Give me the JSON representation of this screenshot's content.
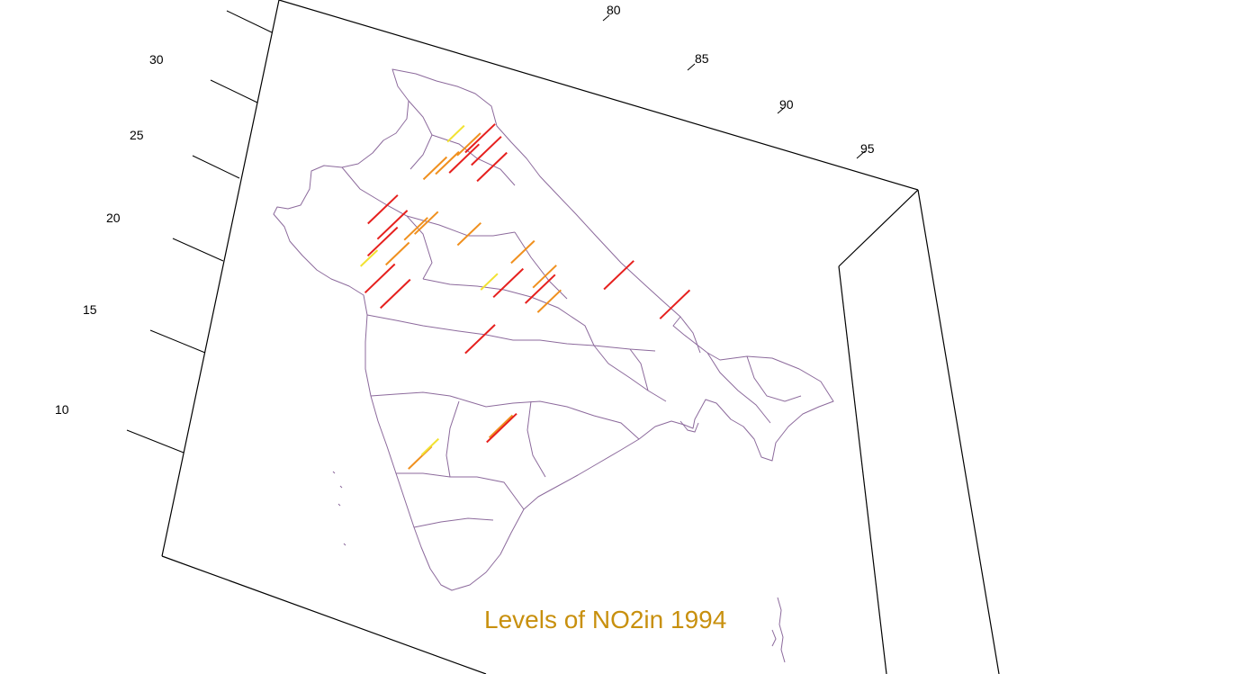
{
  "title": "Levels of NO2in 1994",
  "colors": {
    "title": "#c8900e",
    "boundary": "#8c6a9c",
    "frame": "#000000",
    "level_low": "#f2e232",
    "level_mid": "#f0901e",
    "level_high": "#e6201e"
  },
  "axes": {
    "longitude_ticks": [
      "80",
      "85",
      "90",
      "95"
    ],
    "latitude_ticks": [
      "30",
      "25",
      "20",
      "15",
      "10"
    ]
  },
  "chart_data": {
    "type": "map-3d-bars",
    "region": "India",
    "title": "Levels of NO2in 1994",
    "levels": [
      "low",
      "mid",
      "high"
    ],
    "level_colors": {
      "low": "#f2e232",
      "mid": "#f0901e",
      "high": "#e6201e"
    },
    "longitude_ticks": [
      80,
      85,
      90,
      95
    ],
    "latitude_ticks": [
      30,
      25,
      20,
      15,
      10
    ],
    "stations": [
      {
        "lon": 77.2,
        "lat": 28.6,
        "level": "high"
      },
      {
        "lon": 76.8,
        "lat": 28.3,
        "level": "mid"
      },
      {
        "lon": 76.2,
        "lat": 28.9,
        "level": "low"
      },
      {
        "lon": 77.6,
        "lat": 28.0,
        "level": "high"
      },
      {
        "lon": 75.8,
        "lat": 26.9,
        "level": "mid"
      },
      {
        "lon": 75.2,
        "lat": 26.4,
        "level": "mid"
      },
      {
        "lon": 76.5,
        "lat": 27.2,
        "level": "high"
      },
      {
        "lon": 78.0,
        "lat": 27.2,
        "level": "high"
      },
      {
        "lon": 72.6,
        "lat": 23.0,
        "level": "high"
      },
      {
        "lon": 72.8,
        "lat": 21.2,
        "level": "high"
      },
      {
        "lon": 73.2,
        "lat": 22.3,
        "level": "high"
      },
      {
        "lon": 74.6,
        "lat": 22.7,
        "level": "mid"
      },
      {
        "lon": 73.8,
        "lat": 21.0,
        "level": "mid"
      },
      {
        "lon": 72.9,
        "lat": 19.1,
        "level": "high"
      },
      {
        "lon": 73.8,
        "lat": 18.5,
        "level": "high"
      },
      {
        "lon": 72.5,
        "lat": 20.5,
        "level": "low"
      },
      {
        "lon": 75.1,
        "lat": 23.2,
        "level": "mid"
      },
      {
        "lon": 77.4,
        "lat": 23.3,
        "level": "mid"
      },
      {
        "lon": 80.3,
        "lat": 23.2,
        "level": "mid"
      },
      {
        "lon": 81.6,
        "lat": 22.2,
        "level": "mid"
      },
      {
        "lon": 78.9,
        "lat": 21.2,
        "level": "low"
      },
      {
        "lon": 79.6,
        "lat": 21.0,
        "level": "high"
      },
      {
        "lon": 81.3,
        "lat": 21.2,
        "level": "high"
      },
      {
        "lon": 82.0,
        "lat": 20.9,
        "level": "mid"
      },
      {
        "lon": 78.5,
        "lat": 17.4,
        "level": "high"
      },
      {
        "lon": 85.3,
        "lat": 23.3,
        "level": "high"
      },
      {
        "lon": 88.4,
        "lat": 22.6,
        "level": "high"
      },
      {
        "lon": 80.3,
        "lat": 13.1,
        "level": "mid"
      },
      {
        "lon": 80.2,
        "lat": 12.8,
        "level": "high"
      },
      {
        "lon": 76.3,
        "lat": 10.0,
        "level": "mid"
      },
      {
        "lon": 76.9,
        "lat": 11.0,
        "level": "low"
      }
    ]
  }
}
